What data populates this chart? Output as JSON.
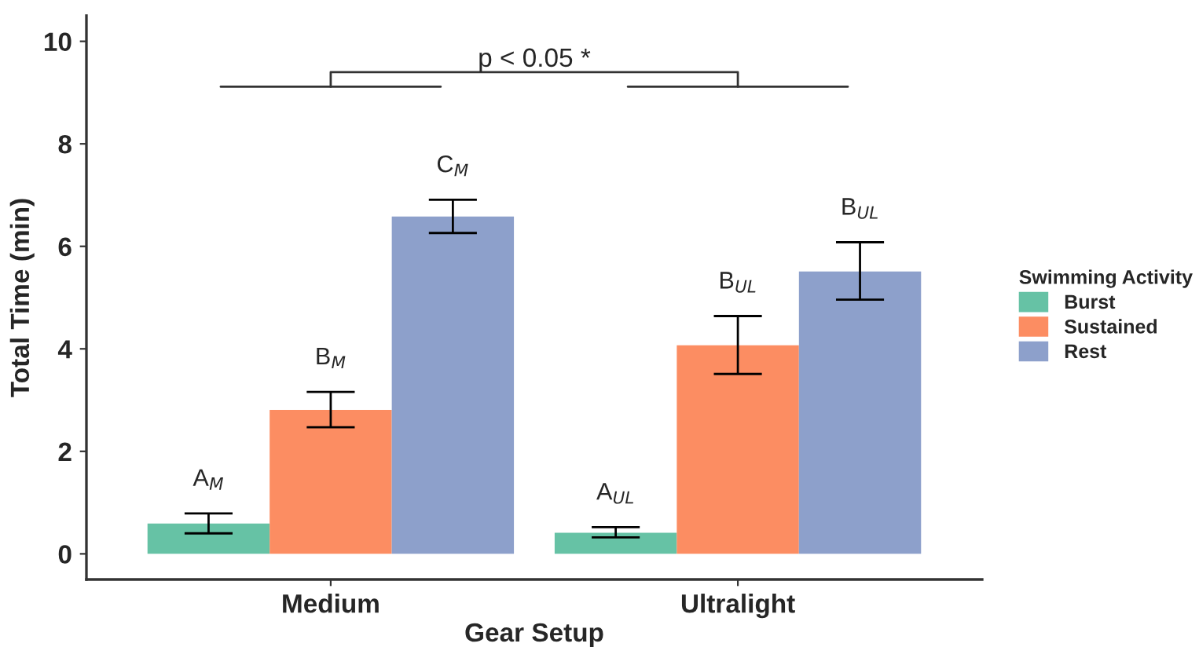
{
  "chart_data": {
    "type": "bar",
    "xlabel": "Gear Setup",
    "ylabel": "Total Time (min)",
    "legend_title": "Swimming Activity",
    "categories": [
      "Medium",
      "Ultralight"
    ],
    "series": [
      {
        "name": "Burst",
        "color": "#66c2a5",
        "values": [
          0.59,
          0.41
        ],
        "errors": [
          [
            0.4,
            0.79
          ],
          [
            0.32,
            0.52
          ]
        ],
        "value_labels": [
          "A$_{M}$",
          "A$_{UL}$"
        ]
      },
      {
        "name": "Sustained",
        "color": "#fc8d62",
        "values": [
          2.81,
          4.07
        ],
        "errors": [
          [
            2.47,
            3.16
          ],
          [
            3.51,
            4.64
          ]
        ],
        "value_labels": [
          "B$_{M}$",
          "B$_{UL}$"
        ]
      },
      {
        "name": "Rest",
        "color": "#8da0cb",
        "values": [
          6.58,
          5.51
        ],
        "errors": [
          [
            6.26,
            6.91
          ],
          [
            4.96,
            6.08
          ]
        ],
        "value_labels": [
          "C$_{M}$",
          "B$_{UL}$"
        ]
      }
    ],
    "ylim": [
      -0.5,
      10.5
    ],
    "yticks": [
      0,
      2,
      4,
      6,
      8,
      10
    ],
    "annotations": [
      "p < 0.05 *"
    ],
    "grid": false,
    "legend": "right"
  }
}
